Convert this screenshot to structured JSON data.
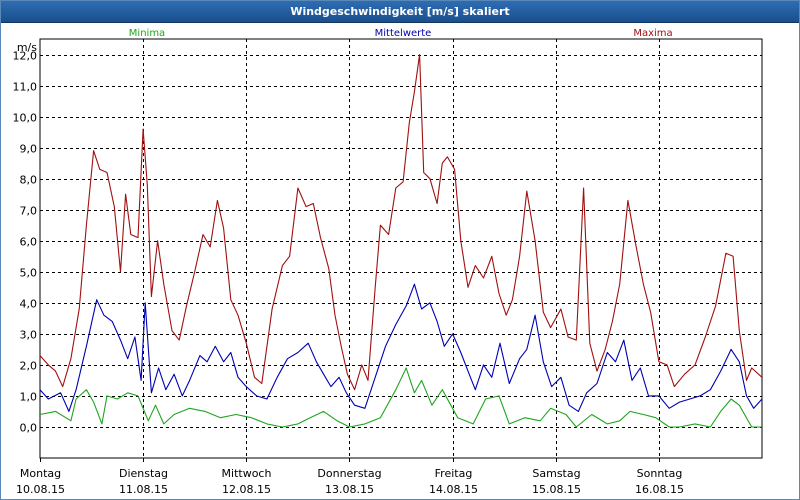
{
  "window": {
    "title": "Windgeschwindigkeit [m/s] skaliert"
  },
  "colors": {
    "minima": "#1fa51f",
    "mittelwerte": "#0000b4",
    "maxima": "#a01010",
    "grid": "#000000",
    "text": "#000000"
  },
  "chart_data": {
    "type": "line",
    "title": "Windgeschwindigkeit [m/s] skaliert",
    "ylabel": "m/s",
    "xlabel": "",
    "ylim": [
      -1.0,
      12.5
    ],
    "yticks": [
      0,
      1,
      2,
      3,
      4,
      5,
      6,
      7,
      8,
      9,
      10,
      11,
      12
    ],
    "ytick_labels": [
      "0,0",
      "1,0",
      "2,0",
      "3,0",
      "4,0",
      "5,0",
      "6,0",
      "7,0",
      "8,0",
      "9,0",
      "10,0",
      "11,0",
      "12,0"
    ],
    "xlim": [
      0,
      7
    ],
    "xticks": [
      {
        "x": 0,
        "day": "Montag",
        "date": "10.08.15"
      },
      {
        "x": 1,
        "day": "Dienstag",
        "date": "11.08.15"
      },
      {
        "x": 2,
        "day": "Mittwoch",
        "date": "12.08.15"
      },
      {
        "x": 3,
        "day": "Donnerstag",
        "date": "13.08.15"
      },
      {
        "x": 4,
        "day": "Freitag",
        "date": "14.08.15"
      },
      {
        "x": 5,
        "day": "Samstag",
        "date": "15.08.15"
      },
      {
        "x": 6,
        "day": "Sonntag",
        "date": "16.08.15"
      }
    ],
    "grid": true,
    "legend": "top",
    "series": [
      {
        "name": "Minima",
        "color": "#1fa51f",
        "points": [
          [
            0,
            0.4
          ],
          [
            0.15,
            0.5
          ],
          [
            0.3,
            0.2
          ],
          [
            0.35,
            0.9
          ],
          [
            0.45,
            1.2
          ],
          [
            0.52,
            0.8
          ],
          [
            0.6,
            0.1
          ],
          [
            0.65,
            1.0
          ],
          [
            0.75,
            0.9
          ],
          [
            0.85,
            1.1
          ],
          [
            0.95,
            1.0
          ],
          [
            1.05,
            0.2
          ],
          [
            1.12,
            0.7
          ],
          [
            1.2,
            0.1
          ],
          [
            1.3,
            0.4
          ],
          [
            1.45,
            0.6
          ],
          [
            1.6,
            0.5
          ],
          [
            1.75,
            0.3
          ],
          [
            1.9,
            0.4
          ],
          [
            2.05,
            0.3
          ],
          [
            2.2,
            0.1
          ],
          [
            2.35,
            0.0
          ],
          [
            2.5,
            0.1
          ],
          [
            2.62,
            0.3
          ],
          [
            2.75,
            0.5
          ],
          [
            2.88,
            0.2
          ],
          [
            3.0,
            0.0
          ],
          [
            3.15,
            0.1
          ],
          [
            3.3,
            0.3
          ],
          [
            3.45,
            1.2
          ],
          [
            3.55,
            1.9
          ],
          [
            3.63,
            1.1
          ],
          [
            3.7,
            1.5
          ],
          [
            3.8,
            0.7
          ],
          [
            3.9,
            1.2
          ],
          [
            4.05,
            0.3
          ],
          [
            4.2,
            0.1
          ],
          [
            4.32,
            0.9
          ],
          [
            4.45,
            1.0
          ],
          [
            4.55,
            0.1
          ],
          [
            4.7,
            0.3
          ],
          [
            4.85,
            0.2
          ],
          [
            4.95,
            0.6
          ],
          [
            5.1,
            0.4
          ],
          [
            5.2,
            0.0
          ],
          [
            5.35,
            0.4
          ],
          [
            5.5,
            0.1
          ],
          [
            5.62,
            0.2
          ],
          [
            5.72,
            0.5
          ],
          [
            5.85,
            0.4
          ],
          [
            5.97,
            0.3
          ],
          [
            6.1,
            0.0
          ],
          [
            6.2,
            0.0
          ],
          [
            6.35,
            0.1
          ],
          [
            6.5,
            0.0
          ],
          [
            6.6,
            0.5
          ],
          [
            6.7,
            0.9
          ],
          [
            6.78,
            0.7
          ],
          [
            6.9,
            0.0
          ],
          [
            7.0,
            0.0
          ]
        ]
      },
      {
        "name": "Mittelwerte",
        "color": "#0000b4",
        "points": [
          [
            0,
            1.2
          ],
          [
            0.08,
            0.9
          ],
          [
            0.2,
            1.1
          ],
          [
            0.28,
            0.5
          ],
          [
            0.35,
            1.2
          ],
          [
            0.45,
            2.6
          ],
          [
            0.55,
            4.1
          ],
          [
            0.62,
            3.6
          ],
          [
            0.7,
            3.4
          ],
          [
            0.78,
            2.8
          ],
          [
            0.85,
            2.2
          ],
          [
            0.92,
            2.9
          ],
          [
            0.98,
            1.5
          ],
          [
            1.02,
            4.0
          ],
          [
            1.08,
            1.1
          ],
          [
            1.15,
            1.9
          ],
          [
            1.22,
            1.2
          ],
          [
            1.3,
            1.7
          ],
          [
            1.38,
            1.0
          ],
          [
            1.45,
            1.5
          ],
          [
            1.55,
            2.3
          ],
          [
            1.62,
            2.1
          ],
          [
            1.7,
            2.6
          ],
          [
            1.78,
            2.1
          ],
          [
            1.85,
            2.4
          ],
          [
            1.92,
            1.6
          ],
          [
            2.0,
            1.3
          ],
          [
            2.1,
            1.0
          ],
          [
            2.2,
            0.9
          ],
          [
            2.3,
            1.6
          ],
          [
            2.4,
            2.2
          ],
          [
            2.5,
            2.4
          ],
          [
            2.6,
            2.7
          ],
          [
            2.68,
            2.1
          ],
          [
            2.75,
            1.7
          ],
          [
            2.82,
            1.3
          ],
          [
            2.9,
            1.6
          ],
          [
            2.97,
            1.1
          ],
          [
            3.05,
            0.7
          ],
          [
            3.15,
            0.6
          ],
          [
            3.25,
            1.6
          ],
          [
            3.35,
            2.6
          ],
          [
            3.45,
            3.3
          ],
          [
            3.55,
            3.9
          ],
          [
            3.63,
            4.6
          ],
          [
            3.7,
            3.8
          ],
          [
            3.78,
            4.0
          ],
          [
            3.85,
            3.4
          ],
          [
            3.92,
            2.6
          ],
          [
            4.0,
            3.0
          ],
          [
            4.08,
            2.4
          ],
          [
            4.15,
            1.8
          ],
          [
            4.22,
            1.2
          ],
          [
            4.3,
            2.0
          ],
          [
            4.38,
            1.6
          ],
          [
            4.46,
            2.7
          ],
          [
            4.55,
            1.4
          ],
          [
            4.65,
            2.2
          ],
          [
            4.72,
            2.5
          ],
          [
            4.8,
            3.6
          ],
          [
            4.88,
            2.1
          ],
          [
            4.96,
            1.3
          ],
          [
            5.05,
            1.6
          ],
          [
            5.13,
            0.7
          ],
          [
            5.22,
            0.5
          ],
          [
            5.3,
            1.1
          ],
          [
            5.4,
            1.4
          ],
          [
            5.5,
            2.4
          ],
          [
            5.58,
            2.1
          ],
          [
            5.66,
            2.8
          ],
          [
            5.74,
            1.5
          ],
          [
            5.82,
            1.9
          ],
          [
            5.9,
            1.0
          ],
          [
            6.0,
            1.0
          ],
          [
            6.1,
            0.6
          ],
          [
            6.2,
            0.8
          ],
          [
            6.3,
            0.9
          ],
          [
            6.4,
            1.0
          ],
          [
            6.5,
            1.2
          ],
          [
            6.6,
            1.8
          ],
          [
            6.7,
            2.5
          ],
          [
            6.78,
            2.1
          ],
          [
            6.85,
            1.0
          ],
          [
            6.92,
            0.6
          ],
          [
            7.0,
            0.9
          ]
        ]
      },
      {
        "name": "Maxima",
        "color": "#a01010",
        "points": [
          [
            0,
            2.3
          ],
          [
            0.08,
            2.0
          ],
          [
            0.15,
            1.8
          ],
          [
            0.22,
            1.3
          ],
          [
            0.3,
            2.2
          ],
          [
            0.38,
            3.8
          ],
          [
            0.45,
            6.5
          ],
          [
            0.52,
            8.9
          ],
          [
            0.58,
            8.3
          ],
          [
            0.65,
            8.2
          ],
          [
            0.72,
            7.1
          ],
          [
            0.78,
            5.0
          ],
          [
            0.83,
            7.5
          ],
          [
            0.88,
            6.2
          ],
          [
            0.95,
            6.1
          ],
          [
            1.0,
            9.6
          ],
          [
            1.04,
            7.8
          ],
          [
            1.08,
            4.2
          ],
          [
            1.14,
            6.0
          ],
          [
            1.2,
            4.6
          ],
          [
            1.28,
            3.1
          ],
          [
            1.35,
            2.8
          ],
          [
            1.42,
            3.9
          ],
          [
            1.5,
            5.0
          ],
          [
            1.58,
            6.2
          ],
          [
            1.65,
            5.8
          ],
          [
            1.72,
            7.3
          ],
          [
            1.78,
            6.4
          ],
          [
            1.85,
            4.1
          ],
          [
            1.92,
            3.6
          ],
          [
            2.0,
            2.7
          ],
          [
            2.08,
            1.6
          ],
          [
            2.15,
            1.4
          ],
          [
            2.25,
            3.8
          ],
          [
            2.35,
            5.2
          ],
          [
            2.42,
            5.5
          ],
          [
            2.5,
            7.7
          ],
          [
            2.58,
            7.1
          ],
          [
            2.65,
            7.2
          ],
          [
            2.72,
            6.1
          ],
          [
            2.8,
            5.1
          ],
          [
            2.86,
            3.6
          ],
          [
            2.92,
            2.6
          ],
          [
            2.98,
            1.7
          ],
          [
            3.05,
            1.2
          ],
          [
            3.12,
            2.0
          ],
          [
            3.18,
            1.5
          ],
          [
            3.25,
            4.5
          ],
          [
            3.3,
            6.5
          ],
          [
            3.38,
            6.2
          ],
          [
            3.45,
            7.7
          ],
          [
            3.52,
            7.9
          ],
          [
            3.58,
            9.8
          ],
          [
            3.63,
            10.8
          ],
          [
            3.68,
            12.0
          ],
          [
            3.72,
            8.2
          ],
          [
            3.78,
            8.0
          ],
          [
            3.85,
            7.2
          ],
          [
            3.9,
            8.5
          ],
          [
            3.95,
            8.7
          ],
          [
            4.02,
            8.3
          ],
          [
            4.08,
            6.0
          ],
          [
            4.15,
            4.5
          ],
          [
            4.22,
            5.2
          ],
          [
            4.3,
            4.8
          ],
          [
            4.38,
            5.5
          ],
          [
            4.45,
            4.3
          ],
          [
            4.52,
            3.6
          ],
          [
            4.58,
            4.1
          ],
          [
            4.65,
            5.5
          ],
          [
            4.72,
            7.6
          ],
          [
            4.8,
            6.0
          ],
          [
            4.88,
            3.7
          ],
          [
            4.95,
            3.2
          ],
          [
            5.05,
            3.8
          ],
          [
            5.12,
            2.9
          ],
          [
            5.2,
            2.8
          ],
          [
            5.27,
            7.7
          ],
          [
            5.33,
            2.7
          ],
          [
            5.4,
            1.8
          ],
          [
            5.48,
            2.5
          ],
          [
            5.55,
            3.4
          ],
          [
            5.62,
            4.6
          ],
          [
            5.7,
            7.3
          ],
          [
            5.78,
            5.8
          ],
          [
            5.85,
            4.6
          ],
          [
            5.92,
            3.7
          ],
          [
            6.0,
            2.1
          ],
          [
            6.08,
            2.0
          ],
          [
            6.15,
            1.3
          ],
          [
            6.25,
            1.7
          ],
          [
            6.35,
            2.0
          ],
          [
            6.45,
            2.9
          ],
          [
            6.55,
            3.9
          ],
          [
            6.65,
            5.6
          ],
          [
            6.72,
            5.5
          ],
          [
            6.78,
            3.1
          ],
          [
            6.85,
            1.5
          ],
          [
            6.9,
            1.9
          ],
          [
            7.0,
            1.6
          ]
        ]
      }
    ]
  }
}
